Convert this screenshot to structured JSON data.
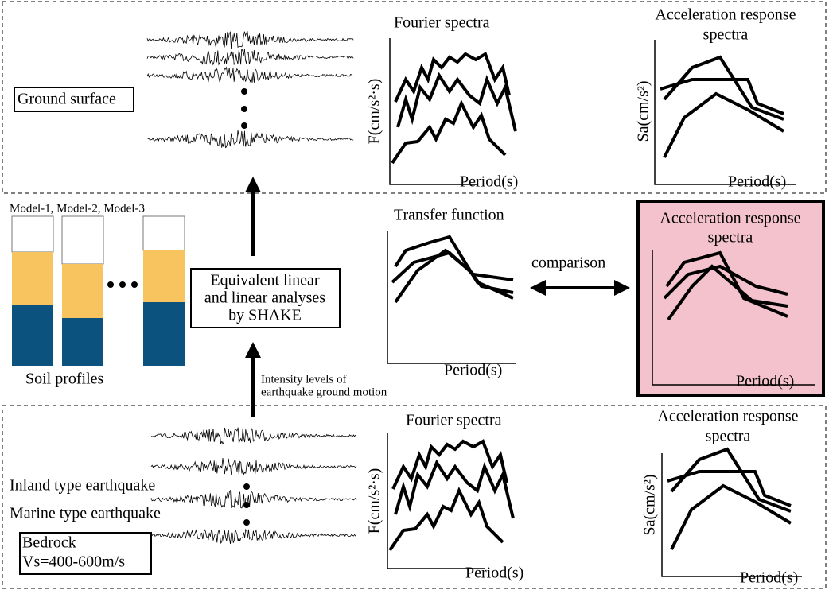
{
  "top": {
    "label": "Ground surface",
    "fourier": {
      "title": "Fourier spectra",
      "y_label": "F(cm/s²·s)",
      "x_label": "Period(s)"
    },
    "response": {
      "title": [
        "Acceleration response",
        "spectra"
      ],
      "y_label": "Sa(cm/s²)",
      "x_label": "Period(s)"
    }
  },
  "middle": {
    "models": "Model-1, Model-2, Model-3",
    "soil_label": "Soil profiles",
    "analysis": [
      "Equivalent linear",
      "and linear analyses",
      "by SHAKE"
    ],
    "intensity": [
      "Intensity levels of",
      "earthquake ground motion"
    ],
    "transfer": {
      "title": "Transfer function",
      "x_label": "Period(s)"
    },
    "comparison": "comparison",
    "response": {
      "title": [
        "Acceleration response",
        "spectra"
      ],
      "x_label": "Period(s)"
    }
  },
  "bottom": {
    "types": [
      "Inland type earthquake",
      "Marine type earthquake"
    ],
    "bedrock": [
      "Bedrock",
      "Vs=400-600m/s"
    ],
    "fourier": {
      "title": "Fourier spectra",
      "y_label": "F(cm/s²·s)",
      "x_label": "Period(s)"
    },
    "response": {
      "title": [
        "Acceleration response",
        "spectra"
      ],
      "y_label": "Sa(cm/s²)",
      "x_label": "Period(s)"
    }
  }
}
